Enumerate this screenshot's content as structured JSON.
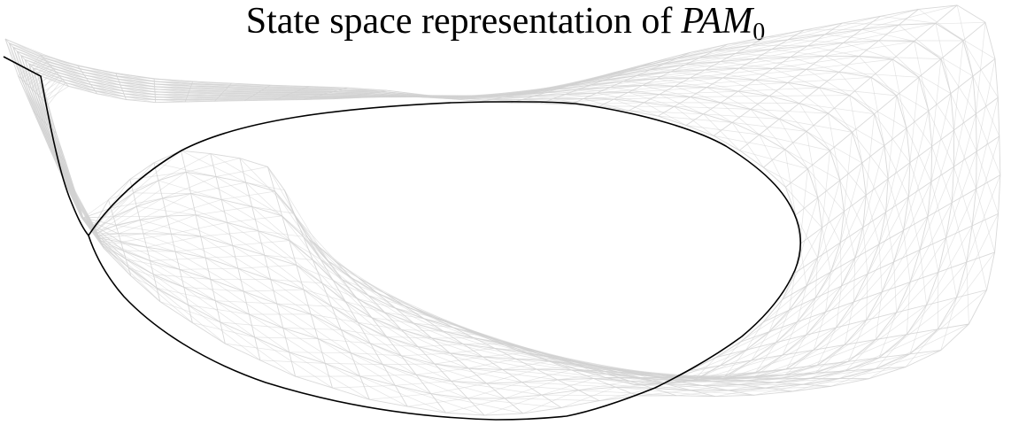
{
  "figure": {
    "title_text": "State space representation of",
    "title_math_base": "PAM",
    "title_math_subscript": "0"
  },
  "colors": {
    "mesh": "#d2d2d2",
    "trajectory": "#000000",
    "background": "#ffffff"
  }
}
